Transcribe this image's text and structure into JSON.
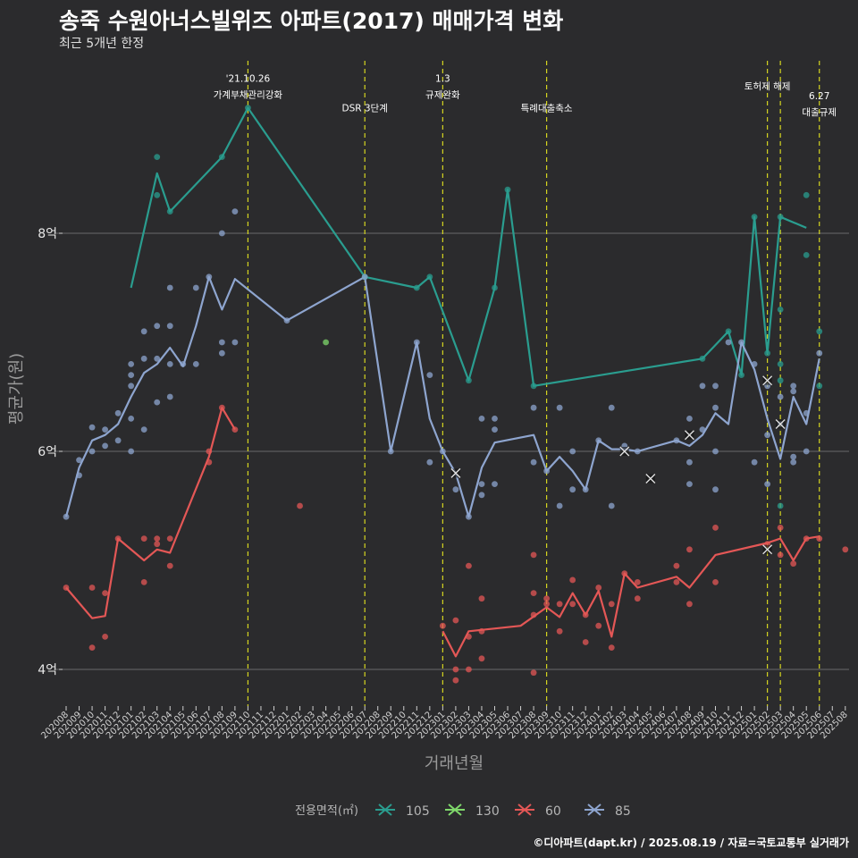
{
  "header": {
    "title": "송죽 수원아너스빌위즈 아파트(2017) 매매가격 변화",
    "subtitle": "최근 5개년 한정"
  },
  "footer": {
    "credit": "©디아파트(dapt.kr) / 2025.08.19 / 자료=국토교통부 실거래가"
  },
  "chart_data": {
    "type": "line",
    "xlabel": "거래년월",
    "ylabel": "평균가(원)",
    "x_unit": "month",
    "categories": [
      "202008",
      "202009",
      "202010",
      "202011",
      "202012",
      "202101",
      "202102",
      "202103",
      "202104",
      "202105",
      "202106",
      "202107",
      "202108",
      "202109",
      "202110",
      "202111",
      "202112",
      "202201",
      "202202",
      "202203",
      "202204",
      "202205",
      "202206",
      "202207",
      "202208",
      "202209",
      "202210",
      "202211",
      "202212",
      "202301",
      "202302",
      "202303",
      "202304",
      "202305",
      "202306",
      "202307",
      "202308",
      "202309",
      "202310",
      "202311",
      "202312",
      "202401",
      "202402",
      "202403",
      "202404",
      "202405",
      "202406",
      "202407",
      "202408",
      "202409",
      "202410",
      "202411",
      "202412",
      "202501",
      "202502",
      "202503",
      "202504",
      "202505",
      "202506",
      "202507",
      "202508"
    ],
    "ylim": [
      3.6,
      9.2
    ],
    "y_ticks": [
      {
        "value": 4,
        "label": "4억"
      },
      {
        "value": 6,
        "label": "6억"
      },
      {
        "value": 8,
        "label": "8억"
      }
    ],
    "grid": true,
    "legend": {
      "title": "전용면적(㎡)",
      "position": "bottom",
      "entries": [
        {
          "name": "105",
          "color": "#2a9d8f"
        },
        {
          "name": "130",
          "color": "#7fd86b"
        },
        {
          "name": "60",
          "color": "#e45756"
        },
        {
          "name": "85",
          "color": "#8ea5cf"
        }
      ]
    },
    "annotations": [
      {
        "x": 14,
        "lines": [
          "'21.10.26",
          "가계부채관리강화"
        ],
        "y": [
          9.39,
          9.24
        ]
      },
      {
        "x": 23,
        "lines": [
          "DSR 3단계"
        ],
        "y": [
          9.12
        ]
      },
      {
        "x": 29,
        "lines": [
          "1.3",
          "규제완화"
        ],
        "y": [
          9.39,
          9.24
        ]
      },
      {
        "x": 37,
        "lines": [
          "특례대출축소"
        ],
        "y": [
          9.12
        ]
      },
      {
        "x": 54,
        "lines": [
          "토허제 해제"
        ],
        "y": [
          9.32
        ]
      },
      {
        "x": 55,
        "lines": [],
        "y": []
      },
      {
        "x": 58,
        "lines": [
          "6.27",
          "대출규제"
        ],
        "y": [
          9.23,
          9.08
        ]
      }
    ],
    "series": [
      {
        "name": "105",
        "color": "#2a9d8f",
        "line": [
          [
            5,
            7.5
          ],
          [
            7,
            8.55
          ],
          [
            8,
            8.2
          ],
          [
            12,
            8.7
          ],
          [
            14,
            9.15
          ],
          [
            23,
            7.6
          ],
          [
            27,
            7.5
          ],
          [
            28,
            7.6
          ],
          [
            31,
            6.65
          ],
          [
            33,
            7.5
          ],
          [
            34,
            8.4
          ],
          [
            36,
            6.6
          ],
          [
            49,
            6.85
          ],
          [
            51,
            7.1
          ],
          [
            52,
            6.7
          ],
          [
            53,
            8.15
          ],
          [
            54,
            6.9
          ],
          [
            55,
            8.15
          ],
          [
            57,
            8.05
          ]
        ],
        "points": [
          [
            7,
            8.7
          ],
          [
            7,
            8.35
          ],
          [
            8,
            8.2
          ],
          [
            12,
            8.7
          ],
          [
            14,
            9.15
          ],
          [
            23,
            7.6
          ],
          [
            27,
            7.5
          ],
          [
            28,
            7.6
          ],
          [
            31,
            6.65
          ],
          [
            33,
            7.5
          ],
          [
            34,
            8.4
          ],
          [
            36,
            6.6
          ],
          [
            49,
            6.85
          ],
          [
            51,
            7.1
          ],
          [
            52,
            6.7
          ],
          [
            53,
            8.15
          ],
          [
            54,
            6.9
          ],
          [
            55,
            8.15
          ],
          [
            55,
            7.3
          ],
          [
            55,
            6.8
          ],
          [
            55,
            6.65
          ],
          [
            55,
            5.5
          ],
          [
            57,
            8.35
          ],
          [
            57,
            7.8
          ],
          [
            58,
            7.1
          ],
          [
            58,
            6.6
          ]
        ],
        "cancelled": []
      },
      {
        "name": "130",
        "color": "#7fd86b",
        "line": [],
        "points": [
          [
            20,
            7.0
          ]
        ],
        "cancelled": []
      },
      {
        "name": "60",
        "color": "#e45756",
        "line": [
          [
            0,
            4.75
          ],
          [
            2,
            4.47
          ],
          [
            3,
            4.49
          ],
          [
            4,
            5.2
          ],
          [
            6,
            5.0
          ],
          [
            7,
            5.1
          ],
          [
            8,
            5.07
          ],
          [
            11,
            5.95
          ],
          [
            12,
            6.4
          ],
          [
            13,
            6.2
          ]
        ],
        "points": [
          [
            0,
            4.75
          ],
          [
            2,
            4.75
          ],
          [
            2,
            4.2
          ],
          [
            3,
            4.7
          ],
          [
            3,
            4.3
          ],
          [
            4,
            5.2
          ],
          [
            6,
            5.2
          ],
          [
            6,
            4.8
          ],
          [
            7,
            5.2
          ],
          [
            7,
            5.15
          ],
          [
            8,
            5.2
          ],
          [
            8,
            4.95
          ],
          [
            11,
            6.0
          ],
          [
            11,
            5.9
          ],
          [
            12,
            6.4
          ],
          [
            13,
            6.2
          ],
          [
            18,
            5.5
          ],
          [
            29,
            4.4
          ],
          [
            30,
            4.45
          ],
          [
            30,
            4.0
          ],
          [
            30,
            3.9
          ],
          [
            31,
            4.0
          ],
          [
            31,
            4.95
          ],
          [
            31,
            4.3
          ],
          [
            32,
            4.35
          ],
          [
            32,
            4.65
          ],
          [
            32,
            4.1
          ],
          [
            36,
            5.05
          ],
          [
            36,
            4.7
          ],
          [
            36,
            4.5
          ],
          [
            36,
            3.97
          ],
          [
            37,
            4.6
          ],
          [
            37,
            4.65
          ],
          [
            38,
            4.35
          ],
          [
            38,
            4.6
          ],
          [
            39,
            4.82
          ],
          [
            39,
            4.6
          ],
          [
            40,
            4.5
          ],
          [
            40,
            4.25
          ],
          [
            41,
            4.75
          ],
          [
            41,
            4.4
          ],
          [
            42,
            4.6
          ],
          [
            42,
            4.2
          ],
          [
            43,
            4.88
          ],
          [
            44,
            4.8
          ],
          [
            44,
            4.65
          ],
          [
            47,
            4.95
          ],
          [
            47,
            4.8
          ],
          [
            48,
            5.1
          ],
          [
            48,
            4.6
          ],
          [
            50,
            5.3
          ],
          [
            50,
            4.8
          ],
          [
            54,
            5.15
          ],
          [
            55,
            5.3
          ],
          [
            55,
            5.05
          ],
          [
            56,
            4.97
          ],
          [
            57,
            5.2
          ],
          [
            58,
            5.2
          ],
          [
            60,
            5.1
          ]
        ],
        "cancelled": [
          [
            54,
            5.1
          ]
        ],
        "line2": [
          [
            29,
            4.35
          ],
          [
            30,
            4.12
          ],
          [
            31,
            4.35
          ],
          [
            35,
            4.4
          ],
          [
            37,
            4.57
          ],
          [
            38,
            4.48
          ],
          [
            39,
            4.7
          ],
          [
            40,
            4.5
          ],
          [
            41,
            4.72
          ],
          [
            42,
            4.3
          ],
          [
            43,
            4.88
          ],
          [
            44,
            4.75
          ],
          [
            47,
            4.85
          ],
          [
            48,
            4.75
          ],
          [
            50,
            5.05
          ],
          [
            54,
            5.16
          ],
          [
            55,
            5.2
          ],
          [
            56,
            5.0
          ],
          [
            57,
            5.2
          ],
          [
            58,
            5.22
          ]
        ]
      },
      {
        "name": "85",
        "color": "#8ea5cf",
        "line": [
          [
            0,
            5.4
          ],
          [
            1,
            5.85
          ],
          [
            2,
            6.1
          ],
          [
            3,
            6.15
          ],
          [
            4,
            6.25
          ],
          [
            5,
            6.5
          ],
          [
            6,
            6.72
          ],
          [
            7,
            6.8
          ],
          [
            8,
            6.95
          ],
          [
            9,
            6.78
          ],
          [
            10,
            7.15
          ],
          [
            11,
            7.6
          ],
          [
            12,
            7.3
          ],
          [
            13,
            7.58
          ],
          [
            17,
            7.2
          ],
          [
            23,
            7.6
          ],
          [
            25,
            6.0
          ],
          [
            27,
            7.0
          ],
          [
            28,
            6.3
          ],
          [
            29,
            6.0
          ],
          [
            30,
            5.8
          ],
          [
            31,
            5.4
          ],
          [
            32,
            5.85
          ],
          [
            33,
            6.08
          ],
          [
            36,
            6.15
          ],
          [
            37,
            5.82
          ],
          [
            38,
            5.95
          ],
          [
            39,
            5.82
          ],
          [
            40,
            5.65
          ],
          [
            41,
            6.1
          ],
          [
            42,
            6.02
          ],
          [
            43,
            6.02
          ],
          [
            44,
            6.0
          ],
          [
            47,
            6.1
          ],
          [
            48,
            6.05
          ],
          [
            49,
            6.15
          ],
          [
            50,
            6.35
          ],
          [
            51,
            6.25
          ],
          [
            52,
            7.0
          ],
          [
            53,
            6.75
          ],
          [
            54,
            6.3
          ],
          [
            55,
            5.93
          ],
          [
            56,
            6.5
          ],
          [
            57,
            6.25
          ],
          [
            58,
            6.85
          ]
        ],
        "points": [
          [
            0,
            5.4
          ],
          [
            1,
            5.92
          ],
          [
            1,
            5.78
          ],
          [
            2,
            6.22
          ],
          [
            2,
            6.0
          ],
          [
            3,
            6.2
          ],
          [
            3,
            6.05
          ],
          [
            4,
            6.35
          ],
          [
            4,
            6.1
          ],
          [
            5,
            6.8
          ],
          [
            5,
            6.7
          ],
          [
            5,
            6.6
          ],
          [
            5,
            6.3
          ],
          [
            5,
            6.0
          ],
          [
            6,
            7.1
          ],
          [
            6,
            6.85
          ],
          [
            6,
            6.2
          ],
          [
            7,
            7.15
          ],
          [
            7,
            6.85
          ],
          [
            7,
            6.45
          ],
          [
            8,
            7.5
          ],
          [
            8,
            7.15
          ],
          [
            8,
            6.8
          ],
          [
            8,
            6.5
          ],
          [
            9,
            6.8
          ],
          [
            10,
            7.5
          ],
          [
            10,
            6.8
          ],
          [
            11,
            7.6
          ],
          [
            12,
            8.0
          ],
          [
            12,
            7.0
          ],
          [
            12,
            6.9
          ],
          [
            13,
            8.2
          ],
          [
            13,
            7.0
          ],
          [
            17,
            7.2
          ],
          [
            23,
            7.6
          ],
          [
            25,
            6.0
          ],
          [
            27,
            7.0
          ],
          [
            28,
            6.7
          ],
          [
            28,
            5.9
          ],
          [
            29,
            6.0
          ],
          [
            30,
            5.65
          ],
          [
            31,
            5.4
          ],
          [
            32,
            6.3
          ],
          [
            32,
            5.7
          ],
          [
            32,
            5.6
          ],
          [
            33,
            6.3
          ],
          [
            33,
            6.2
          ],
          [
            33,
            5.7
          ],
          [
            36,
            6.4
          ],
          [
            36,
            5.9
          ],
          [
            37,
            5.82
          ],
          [
            38,
            6.4
          ],
          [
            38,
            5.5
          ],
          [
            39,
            6.0
          ],
          [
            39,
            5.65
          ],
          [
            40,
            5.65
          ],
          [
            41,
            6.1
          ],
          [
            42,
            6.4
          ],
          [
            42,
            5.5
          ],
          [
            43,
            6.05
          ],
          [
            44,
            6.0
          ],
          [
            47,
            6.1
          ],
          [
            48,
            6.3
          ],
          [
            48,
            5.9
          ],
          [
            48,
            5.7
          ],
          [
            49,
            6.6
          ],
          [
            49,
            6.2
          ],
          [
            50,
            6.6
          ],
          [
            50,
            6.4
          ],
          [
            50,
            6.0
          ],
          [
            50,
            5.65
          ],
          [
            51,
            7.0
          ],
          [
            52,
            7.0
          ],
          [
            53,
            6.8
          ],
          [
            53,
            5.9
          ],
          [
            54,
            6.6
          ],
          [
            54,
            6.15
          ],
          [
            54,
            5.7
          ],
          [
            55,
            6.5
          ],
          [
            55,
            6.25
          ],
          [
            56,
            6.6
          ],
          [
            56,
            6.55
          ],
          [
            56,
            5.95
          ],
          [
            56,
            5.9
          ],
          [
            57,
            6.35
          ],
          [
            57,
            6.0
          ],
          [
            58,
            6.9
          ]
        ],
        "cancelled": [
          [
            30,
            5.8
          ],
          [
            43,
            6.0
          ],
          [
            45,
            5.75
          ],
          [
            48,
            6.15
          ],
          [
            54,
            6.65
          ],
          [
            55,
            6.25
          ]
        ]
      }
    ]
  }
}
